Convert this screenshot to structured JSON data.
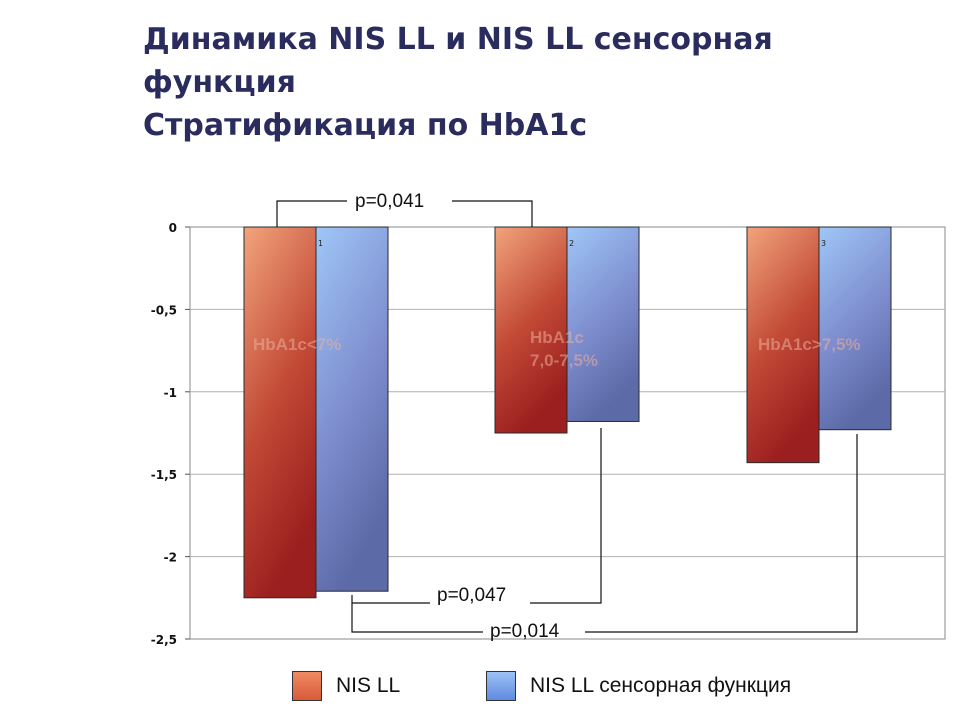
{
  "title": {
    "line1": "Динамика NIS LL и NIS LL сенсорная",
    "line2": "функция",
    "line3": "Стратификация по HbA1c"
  },
  "chart_data": {
    "type": "bar",
    "categories": [
      "1",
      "2",
      "3"
    ],
    "series": [
      {
        "name": "NIS LL",
        "values": [
          -2.25,
          -1.25,
          -1.43
        ],
        "color": "#c8452f"
      },
      {
        "name": "NIS LL сенсорная функция",
        "values": [
          -2.21,
          -1.18,
          -1.23
        ],
        "color": "#6f88cf"
      }
    ],
    "group_labels": [
      [
        "HbA1c<7%"
      ],
      [
        "HbA1c",
        "7,0-7,5%"
      ],
      [
        "HbA1c>7,5%"
      ]
    ],
    "ylim": [
      -2.5,
      0
    ],
    "yticks": [
      "0",
      "-0,5",
      "-1",
      "-1,5",
      "-2",
      "-2,5"
    ],
    "ytick_values": [
      0,
      -0.5,
      -1,
      -1.5,
      -2,
      -2.5
    ],
    "grid": true,
    "legend_position": "bottom",
    "annotations": [
      "p=0,041",
      "p=0,047",
      "p=0,014"
    ]
  },
  "legend": {
    "items": [
      {
        "label": "NIS LL",
        "color": "#e06c4c"
      },
      {
        "label": "NIS LL сенсорная функция",
        "color": "#7aa3e8"
      }
    ]
  }
}
